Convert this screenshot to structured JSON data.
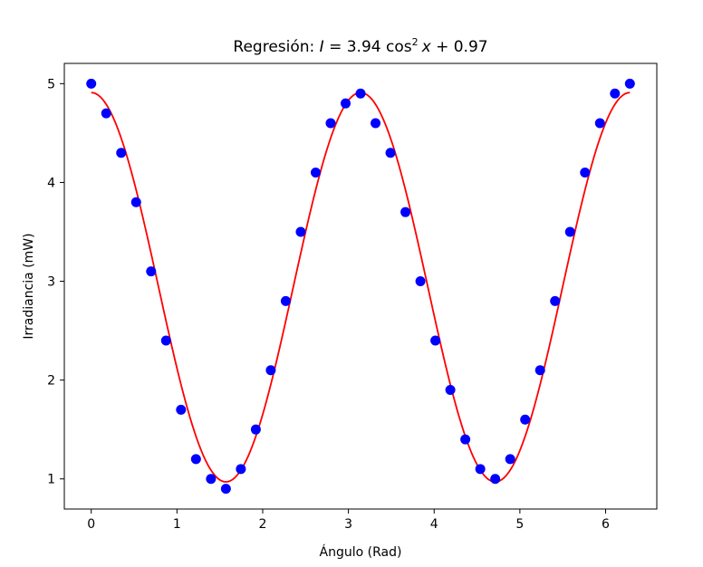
{
  "chart_data": {
    "type": "scatter",
    "title": {
      "prefix": "Regresión: ",
      "var_i": "I",
      "eq": " = 3.94 cos",
      "exp": "2",
      "var_x": "x",
      "suffix": " + 0.97"
    },
    "xlabel": "Ángulo (Rad)",
    "ylabel": "Irradiancia (mW)",
    "xlim": [
      -0.314,
      6.597
    ],
    "ylim": [
      0.695,
      5.205
    ],
    "xticks": [
      0,
      1,
      2,
      3,
      4,
      5,
      6
    ],
    "yticks": [
      1,
      2,
      3,
      4,
      5
    ],
    "grid": false,
    "legend": "none",
    "series": [
      {
        "type": "scatter",
        "color": "#0000ff",
        "x": [
          0.0,
          0.1745,
          0.3491,
          0.5236,
          0.6981,
          0.8727,
          1.0472,
          1.2217,
          1.3963,
          1.5708,
          1.7453,
          1.9199,
          2.0944,
          2.2689,
          2.4435,
          2.618,
          2.7925,
          2.9671,
          3.1416,
          3.3161,
          3.4907,
          3.6652,
          3.8397,
          4.0143,
          4.1888,
          4.3633,
          4.5379,
          4.7124,
          4.8869,
          5.0615,
          5.236,
          5.4105,
          5.5851,
          5.7596,
          5.9341,
          6.1087,
          6.2832
        ],
        "y": [
          5.0,
          4.7,
          4.3,
          3.8,
          3.1,
          2.4,
          1.7,
          1.2,
          1.0,
          0.9,
          1.1,
          1.5,
          2.1,
          2.8,
          3.5,
          4.1,
          4.6,
          4.8,
          4.9,
          4.6,
          4.3,
          3.7,
          3.0,
          2.4,
          1.9,
          1.4,
          1.1,
          1.0,
          1.2,
          1.6,
          2.1,
          2.8,
          3.5,
          4.1,
          4.6,
          4.9,
          5.0
        ]
      },
      {
        "type": "line",
        "color": "#ff0000",
        "model": {
          "a": 3.94,
          "b": 0.97,
          "x_start": 0.0,
          "x_end": 6.2832
        }
      }
    ]
  }
}
